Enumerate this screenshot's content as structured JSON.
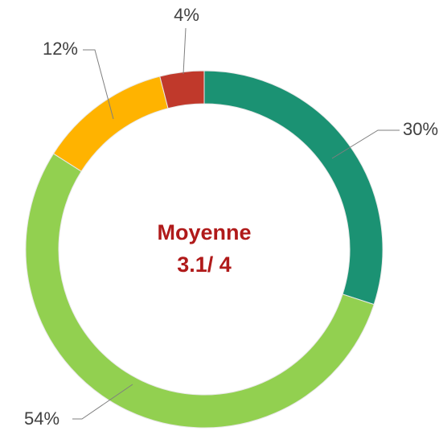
{
  "chart_data": {
    "type": "donut",
    "values": [
      30,
      54,
      12,
      4
    ],
    "value_labels": [
      "30%",
      "54%",
      "12%",
      "4%"
    ],
    "colors": [
      "#1b9273",
      "#92d050",
      "#ffb300",
      "#c0392b"
    ],
    "annotations": [
      "Moyenne",
      "3.1/ 4"
    ],
    "annotation_color": "#b01a1a"
  }
}
